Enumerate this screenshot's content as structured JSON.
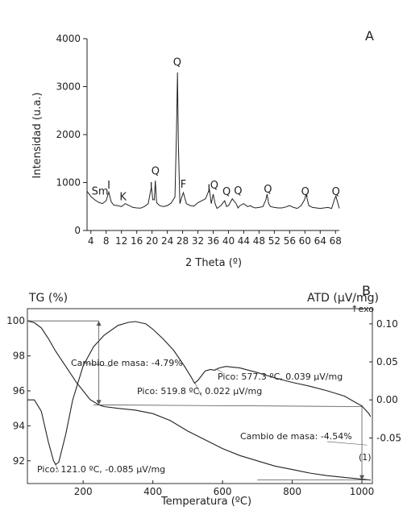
{
  "chart_data": [
    {
      "type": "line",
      "panel": "A",
      "xlabel": "2 Theta (º)",
      "ylabel": "Intensidad (u.a.)",
      "xlim": [
        3,
        69
      ],
      "ylim": [
        0,
        4000
      ],
      "x_ticks": [
        "4",
        "8",
        "12",
        "16",
        "20",
        "24",
        "28",
        "32",
        "36",
        "40",
        "44",
        "48",
        "52",
        "56",
        "60",
        "64",
        "68"
      ],
      "y_ticks": [
        "0",
        "1000",
        "2000",
        "3000",
        "4000"
      ],
      "series": [
        {
          "x": [
            3,
            4,
            5,
            6,
            7,
            8,
            8.7,
            9.3,
            10,
            11,
            12,
            12.5,
            13,
            14,
            15,
            16,
            17,
            18,
            19,
            19.5,
            19.85,
            20.2,
            20.6,
            20.85,
            21.2,
            22,
            23,
            24,
            25,
            26,
            26.4,
            26.65,
            26.9,
            27.3,
            27.8,
            28.2,
            29,
            30,
            31,
            32,
            33,
            34,
            35,
            35.5,
            36,
            36.5,
            37,
            38,
            39,
            39.5,
            40,
            41,
            42,
            42.5,
            43,
            44,
            45,
            45.8,
            46,
            47,
            48,
            49,
            49.8,
            50.1,
            50.5,
            51,
            52,
            53,
            54,
            55,
            56,
            57,
            58,
            59,
            59.9,
            60.3,
            61,
            62,
            63,
            64,
            65,
            66,
            67,
            67.7,
            68.1,
            69
          ],
          "y": [
            820,
            710,
            640,
            590,
            560,
            620,
            800,
            600,
            530,
            520,
            500,
            530,
            560,
            520,
            480,
            470,
            465,
            500,
            560,
            780,
            900,
            640,
            640,
            1040,
            580,
            520,
            500,
            520,
            570,
            700,
            2100,
            3300,
            1800,
            560,
            700,
            790,
            560,
            520,
            510,
            580,
            620,
            660,
            860,
            560,
            760,
            560,
            460,
            520,
            620,
            500,
            520,
            660,
            560,
            470,
            520,
            560,
            500,
            520,
            500,
            470,
            480,
            500,
            640,
            760,
            560,
            500,
            480,
            470,
            470,
            490,
            520,
            480,
            460,
            520,
            640,
            760,
            520,
            480,
            470,
            460,
            470,
            480,
            460,
            640,
            720,
            460
          ]
        }
      ],
      "peak_labels": [
        {
          "text": "Sm",
          "x": 6.4,
          "y": 750
        },
        {
          "text": "I",
          "x": 8.7,
          "y": 870
        },
        {
          "text": "K",
          "x": 12.4,
          "y": 630
        },
        {
          "text": "Q",
          "x": 20.9,
          "y": 1170
        },
        {
          "text": "I",
          "x": 19.8,
          "y": 840
        },
        {
          "text": "Q",
          "x": 26.6,
          "y": 3440
        },
        {
          "text": "F",
          "x": 28.2,
          "y": 890
        },
        {
          "text": "I",
          "x": 34.9,
          "y": 800
        },
        {
          "text": "Q",
          "x": 36.3,
          "y": 870
        },
        {
          "text": "Q",
          "x": 39.5,
          "y": 740
        },
        {
          "text": "Q",
          "x": 42.5,
          "y": 760
        },
        {
          "text": "Q",
          "x": 50.3,
          "y": 790
        },
        {
          "text": "Q",
          "x": 60.1,
          "y": 740
        },
        {
          "text": "Q",
          "x": 68.1,
          "y": 740
        }
      ]
    },
    {
      "type": "line",
      "panel": "B",
      "xlabel": "Temperatura (ºC)",
      "ylabel_left": "TG (%)",
      "ylabel_right": "ATD (µV/mg)",
      "right_axis_note": "↑exo",
      "xlim": [
        40,
        1030
      ],
      "ylim_left": [
        90.7,
        100.7
      ],
      "ylim_right": [
        -0.11,
        0.12
      ],
      "x_ticks": [
        "200",
        "400",
        "600",
        "800",
        "1000"
      ],
      "y_left_ticks": [
        "92",
        "94",
        "96",
        "98",
        "100"
      ],
      "y_right_ticks": [
        "-0.05",
        "0.00",
        "0.05",
        "0.10"
      ],
      "series": [
        {
          "name": "TG",
          "axis": "left",
          "x": [
            40,
            60,
            80,
            100,
            120,
            140,
            160,
            180,
            200,
            220,
            245,
            260,
            300,
            350,
            400,
            450,
            500,
            550,
            600,
            650,
            700,
            750,
            800,
            850,
            900,
            950,
            1000,
            1025
          ],
          "y": [
            100.0,
            99.9,
            99.6,
            99.0,
            98.3,
            97.7,
            97.1,
            96.5,
            96.0,
            95.5,
            95.2,
            95.1,
            95.0,
            94.9,
            94.7,
            94.3,
            93.7,
            93.2,
            92.7,
            92.3,
            92.0,
            91.7,
            91.5,
            91.3,
            91.15,
            91.05,
            90.95,
            90.9
          ]
        },
        {
          "name": "ATD",
          "axis": "right",
          "x": [
            40,
            60,
            80,
            100,
            115,
            121,
            130,
            150,
            170,
            200,
            230,
            260,
            300,
            330,
            350,
            380,
            400,
            430,
            460,
            490,
            510,
            519.8,
            530,
            550,
            565,
            577.3,
            590,
            610,
            650,
            700,
            750,
            800,
            850,
            900,
            950,
            980,
            1000,
            1020,
            1025
          ],
          "y": [
            0.0,
            0.0,
            -0.015,
            -0.055,
            -0.08,
            -0.085,
            -0.082,
            -0.045,
            0.0,
            0.045,
            0.07,
            0.085,
            0.098,
            0.102,
            0.103,
            0.1,
            0.093,
            0.08,
            0.065,
            0.045,
            0.03,
            0.022,
            0.026,
            0.038,
            0.04,
            0.039,
            0.042,
            0.044,
            0.042,
            0.036,
            0.029,
            0.023,
            0.018,
            0.012,
            0.005,
            -0.003,
            -0.008,
            -0.018,
            -0.022
          ]
        }
      ],
      "annotations": [
        {
          "text": "Cambio de masa: -4.79%"
        },
        {
          "text": "Pico: 577.3 ºC, 0.039 µV/mg"
        },
        {
          "text": "Pico: 519.8 ºC, 0.022 µV/mg"
        },
        {
          "text": "Cambio de masa: -4.54%"
        },
        {
          "text": "Pico: 121.0 ºC, -0.085 µV/mg"
        },
        {
          "text": "(1)"
        }
      ]
    }
  ]
}
